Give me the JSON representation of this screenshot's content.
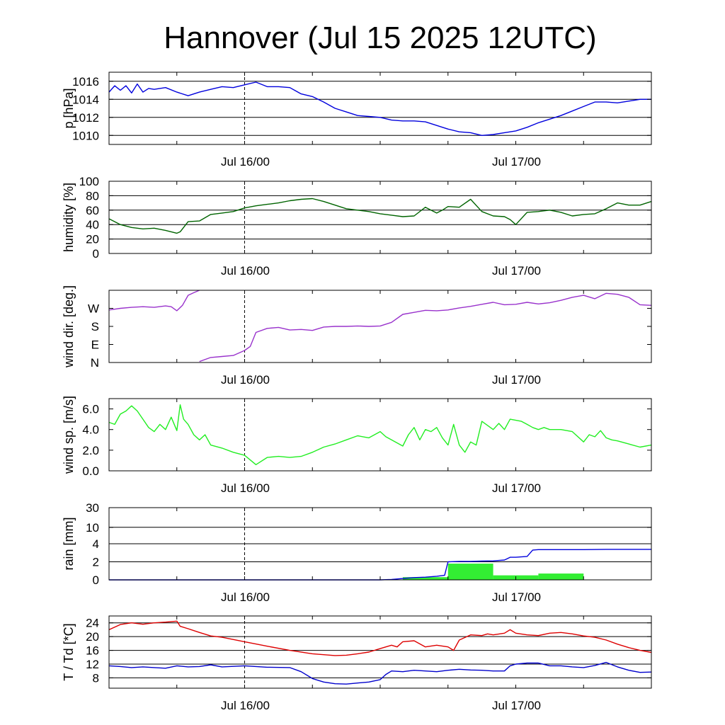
{
  "title": "Hannover (Jul 15 2025 12UTC)",
  "x_tick_labels": [
    "Jul 16/00",
    "Jul 17/00"
  ],
  "colors": {
    "pressure": "#0000dd",
    "humidity": "#006400",
    "wind_dir": "#9932cc",
    "wind_speed": "#22ee22",
    "rain_total": "#0000dd",
    "rain_bars": "#33ee33",
    "temperature": "#dd0000",
    "dewpoint": "#0000cc"
  },
  "chart_data": [
    {
      "type": "line",
      "ylabel": "p [hPa]",
      "ylim": [
        1009,
        1017
      ],
      "yticks": [
        1010,
        1012,
        1014,
        1016
      ],
      "ytick_labels": [
        "1010",
        "1012",
        "1014",
        "1016"
      ],
      "grid": "horizontal",
      "series": [
        {
          "key": "pressure",
          "x": [
            0,
            0.5,
            1,
            1.5,
            2,
            2.5,
            3,
            3.5,
            4,
            5,
            6,
            7,
            8,
            9,
            10,
            11,
            12,
            13,
            14,
            15,
            16,
            17,
            18,
            19,
            20,
            21,
            22,
            23,
            24,
            25,
            26,
            27,
            28,
            29,
            30,
            31,
            32,
            33,
            34,
            35,
            36,
            37,
            38,
            39,
            40,
            41,
            42,
            43,
            44,
            45,
            46,
            47,
            48
          ],
          "y": [
            1014.8,
            1015.5,
            1015.0,
            1015.5,
            1014.7,
            1015.7,
            1014.8,
            1015.2,
            1015.1,
            1015.3,
            1014.8,
            1014.4,
            1014.8,
            1015.1,
            1015.4,
            1015.3,
            1015.6,
            1015.9,
            1015.4,
            1015.4,
            1015.3,
            1014.6,
            1014.3,
            1013.7,
            1013.0,
            1012.6,
            1012.2,
            1012.1,
            1012.0,
            1011.7,
            1011.6,
            1011.6,
            1011.5,
            1011.1,
            1010.7,
            1010.4,
            1010.3,
            1010.0,
            1010.1,
            1010.3,
            1010.5,
            1010.9,
            1011.4,
            1011.8,
            1012.2,
            1012.7,
            1013.2,
            1013.7,
            1013.7,
            1013.6,
            1013.8,
            1014.0,
            1014.0
          ]
        }
      ]
    },
    {
      "type": "line",
      "ylabel": "humidity [%]",
      "ylim": [
        0,
        100
      ],
      "yticks": [
        0,
        20,
        40,
        60,
        80,
        100
      ],
      "ytick_labels": [
        "0",
        "20",
        "40",
        "60",
        "80",
        "100"
      ],
      "grid": "horizontal",
      "series": [
        {
          "key": "humidity",
          "x": [
            0,
            1,
            2,
            3,
            4,
            5,
            6,
            6.3,
            7,
            8,
            9,
            10,
            11,
            12,
            13,
            14,
            15,
            16,
            17,
            18,
            19,
            20,
            21,
            22,
            23,
            24,
            25,
            26,
            27,
            28,
            29,
            29.5,
            30,
            31,
            32,
            33,
            34,
            35,
            35.5,
            36,
            37,
            38,
            39,
            40,
            41,
            42,
            43,
            44,
            45,
            46,
            47,
            48
          ],
          "y": [
            48,
            40,
            36,
            34,
            35,
            32,
            28,
            30,
            44,
            45,
            54,
            56,
            58,
            63,
            66,
            68,
            70,
            73,
            75,
            76,
            72,
            67,
            62,
            60,
            58,
            55,
            53,
            51,
            52,
            64,
            56,
            60,
            65,
            64,
            75,
            58,
            52,
            51,
            47,
            40,
            57,
            58,
            60,
            57,
            52,
            54,
            55,
            62,
            70,
            67,
            67,
            72
          ]
        }
      ]
    },
    {
      "type": "line",
      "ylabel": "wind dir. [deg.]",
      "ylim": [
        0,
        360
      ],
      "yticks": [
        0,
        90,
        180,
        270
      ],
      "ytick_labels": [
        "N",
        "E",
        "S",
        "W"
      ],
      "grid": "none",
      "series": [
        {
          "key": "wind_dir_a",
          "x": [
            0,
            1,
            2,
            3,
            4,
            5,
            5.5,
            6,
            6.5,
            7,
            7.5,
            8
          ],
          "y": [
            262,
            270,
            275,
            278,
            275,
            282,
            278,
            258,
            285,
            335,
            348,
            360
          ]
        },
        {
          "key": "wind_dir_b",
          "x": [
            8,
            9,
            10,
            11,
            12,
            12.5,
            13,
            14,
            15,
            16,
            17,
            18,
            19,
            20,
            21,
            22,
            23,
            24,
            25,
            26,
            27,
            28,
            29,
            30,
            31,
            32,
            33,
            34,
            35,
            36,
            37,
            38,
            39,
            40,
            41,
            42,
            43,
            44,
            45,
            46,
            47,
            48
          ],
          "y": [
            5,
            25,
            30,
            35,
            60,
            80,
            150,
            170,
            175,
            162,
            165,
            160,
            177,
            180,
            180,
            182,
            180,
            182,
            200,
            240,
            250,
            260,
            258,
            262,
            272,
            280,
            290,
            300,
            288,
            290,
            300,
            292,
            298,
            310,
            325,
            335,
            318,
            345,
            340,
            325,
            288,
            285
          ]
        }
      ]
    },
    {
      "type": "line",
      "ylabel": "wind sp. [m/s]",
      "ylim": [
        0,
        7
      ],
      "yticks": [
        0,
        2,
        4,
        6
      ],
      "ytick_labels": [
        "0.0",
        "2.0",
        "4.0",
        "6.0"
      ],
      "grid": "none",
      "series": [
        {
          "key": "wind_speed",
          "x": [
            0,
            0.5,
            1,
            1.5,
            2,
            2.5,
            3,
            3.5,
            4,
            4.5,
            5,
            5.5,
            6,
            6.3,
            6.6,
            7,
            7.5,
            8,
            8.5,
            9,
            10,
            11,
            12,
            13,
            14,
            15,
            16,
            17,
            18,
            19,
            20,
            21,
            22,
            23,
            24,
            24.5,
            25,
            26,
            26.5,
            27,
            27.5,
            28,
            28.5,
            29,
            29.5,
            30,
            30.5,
            31,
            31.5,
            32,
            32.5,
            33,
            34,
            34.5,
            35,
            35.5,
            36,
            36.5,
            37,
            37.5,
            38,
            38.5,
            39,
            40,
            41,
            42,
            42.5,
            43,
            43.5,
            44,
            44.5,
            45,
            46,
            47,
            48
          ],
          "y": [
            4.7,
            4.5,
            5.5,
            5.8,
            6.3,
            5.8,
            5.0,
            4.2,
            3.8,
            4.5,
            4.0,
            5.2,
            3.9,
            6.4,
            5.0,
            4.5,
            3.5,
            3.0,
            3.5,
            2.5,
            2.2,
            1.8,
            1.5,
            0.6,
            1.3,
            1.4,
            1.3,
            1.4,
            1.8,
            2.3,
            2.6,
            3.0,
            3.4,
            3.2,
            3.8,
            3.3,
            3.0,
            2.4,
            3.5,
            4.2,
            3.0,
            4.0,
            3.8,
            4.2,
            3.2,
            2.5,
            4.5,
            2.5,
            1.8,
            2.8,
            2.5,
            4.8,
            4.0,
            4.6,
            4.0,
            5.0,
            4.9,
            4.8,
            4.5,
            4.2,
            4.0,
            4.2,
            4.0,
            4.0,
            3.8,
            2.8,
            3.5,
            3.3,
            3.9,
            3.2,
            3.0,
            2.9,
            2.6,
            2.3,
            2.5
          ]
        }
      ]
    },
    {
      "type": "bar",
      "ylabel": "rain [mm]",
      "ylim": [
        0,
        30
      ],
      "yticks": [
        0,
        2,
        4,
        10,
        30
      ],
      "ytick_labels": [
        "0",
        "2",
        "4",
        "10",
        "30"
      ],
      "grid": "horizontal",
      "bars": [
        {
          "x0": 26,
          "x1": 30,
          "value": 0.3
        },
        {
          "x0": 30,
          "x1": 34,
          "value": 1.8
        },
        {
          "x0": 34,
          "x1": 38,
          "value": 0.5
        },
        {
          "x0": 38,
          "x1": 42,
          "value": 0.7
        }
      ],
      "series": [
        {
          "key": "rain_total",
          "x": [
            0,
            24,
            25,
            26,
            27,
            28,
            29,
            29.7,
            30,
            31,
            32,
            33,
            34,
            35,
            35.5,
            36,
            37,
            37.5,
            38,
            40,
            42,
            44,
            46,
            48
          ],
          "y": [
            0,
            0,
            0.05,
            0.15,
            0.25,
            0.3,
            0.4,
            0.5,
            2.0,
            2.05,
            2.05,
            2.08,
            2.1,
            2.2,
            2.5,
            2.5,
            2.6,
            3.3,
            3.35,
            3.35,
            3.35,
            3.38,
            3.38,
            3.38
          ]
        }
      ]
    },
    {
      "type": "line",
      "ylabel": "T / Td [*C]",
      "ylim": [
        5,
        26
      ],
      "yticks": [
        8,
        12,
        16,
        20,
        24
      ],
      "ytick_labels": [
        "8",
        "12",
        "16",
        "20",
        "24"
      ],
      "grid": "horizontal",
      "series": [
        {
          "key": "temperature",
          "x": [
            0,
            1,
            2,
            3,
            4,
            5,
            6,
            6.3,
            7,
            8,
            9,
            10,
            12,
            14,
            16,
            18,
            20,
            21,
            22,
            23,
            24,
            25,
            25.5,
            26,
            27,
            28,
            29,
            30,
            30.5,
            31,
            32,
            33,
            33.5,
            34,
            35,
            35.5,
            36,
            37,
            38,
            39,
            40,
            41,
            42,
            43,
            44,
            45,
            46,
            47,
            48
          ],
          "y": [
            22,
            23.5,
            24,
            23.6,
            24,
            24.2,
            24.5,
            23.0,
            22.3,
            21.2,
            20.2,
            19.8,
            18.5,
            17.2,
            16.0,
            15.0,
            14.5,
            14.6,
            15.0,
            15.5,
            16.5,
            17.5,
            17.0,
            18.5,
            18.8,
            17.0,
            17.5,
            17.0,
            16.0,
            19.0,
            20.5,
            20.3,
            20.8,
            20.5,
            21.0,
            22.0,
            21.0,
            20.5,
            20.3,
            21.0,
            21.2,
            20.8,
            20.2,
            19.8,
            19.0,
            17.8,
            16.8,
            16.0,
            15.4
          ]
        },
        {
          "key": "dewpoint",
          "x": [
            0,
            1,
            2,
            3,
            4,
            5,
            6,
            7,
            8,
            9,
            10,
            12,
            14,
            16,
            17,
            18,
            19,
            20,
            21,
            22,
            23,
            24,
            24.5,
            25,
            26,
            27,
            28,
            29,
            30,
            31,
            32,
            33,
            34,
            35,
            35.5,
            36,
            37,
            38,
            39,
            40,
            41,
            42,
            43,
            44,
            45,
            46,
            47,
            48
          ],
          "y": [
            11.5,
            11.3,
            11.0,
            11.2,
            11.0,
            10.8,
            11.5,
            11.2,
            11.3,
            11.8,
            11.2,
            11.5,
            11.1,
            11.0,
            9.8,
            7.8,
            6.8,
            6.3,
            6.2,
            6.5,
            6.8,
            7.5,
            9.0,
            10.0,
            9.8,
            10.2,
            10.0,
            9.8,
            10.2,
            10.5,
            10.3,
            10.2,
            10.0,
            10.0,
            11.5,
            12.0,
            12.3,
            12.3,
            11.5,
            11.5,
            11.2,
            11.0,
            11.6,
            12.5,
            11.2,
            10.2,
            9.6,
            9.7
          ]
        }
      ]
    }
  ]
}
